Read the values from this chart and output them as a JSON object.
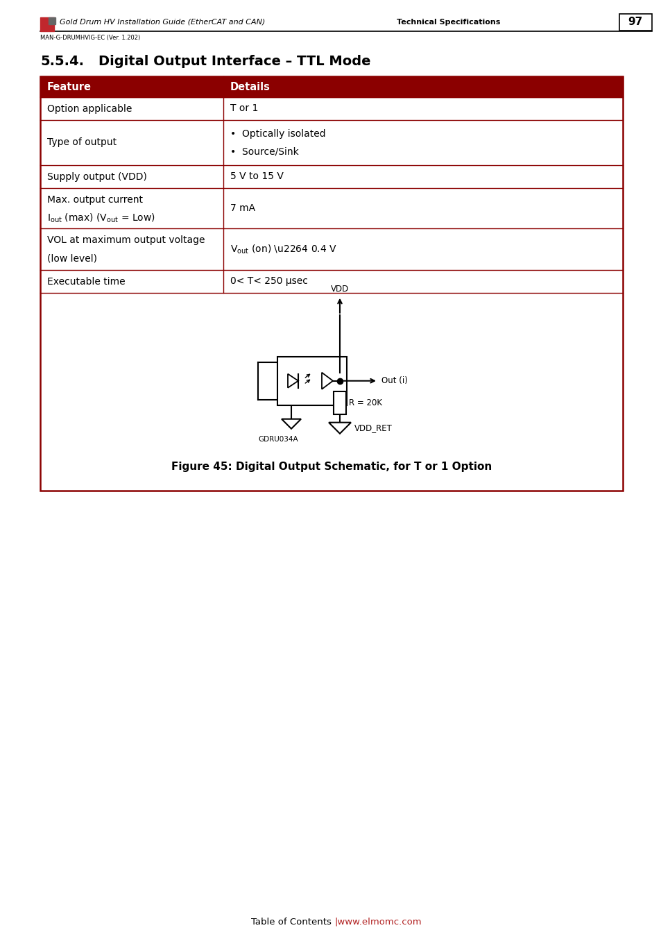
{
  "page_bg": "#ffffff",
  "header_text": "Gold Drum HV Installation Guide (EtherCAT and CAN)",
  "header_bold": "Technical Specifications",
  "header_sub": "MAN-G-DRUMHVIG-EC (Ver. 1.202)",
  "page_num": "97",
  "table_header_bg": "#8B0000",
  "table_header_text_color": "#ffffff",
  "table_border_color": "#8B0000",
  "col1_header": "Feature",
  "col2_header": "Details",
  "row_data": [
    {
      "feat": "Option applicable",
      "det": "T or 1",
      "feat2": "",
      "det2": ""
    },
    {
      "feat": "Type of output",
      "det": "•  Optically isolated",
      "feat2": "",
      "det2": "•  Source/Sink"
    },
    {
      "feat": "Supply output (VDD)",
      "det": "5 V to 15 V",
      "feat2": "",
      "det2": ""
    },
    {
      "feat": "Max. output current",
      "det": "7 mA",
      "feat2": "I_out_sub (max) (V_out_sub = Low)",
      "det2": ""
    },
    {
      "feat": "VOL at maximum output voltage",
      "det": "V_out_sub (on) ≤ 0.4 V",
      "feat2": "(low level)",
      "det2": ""
    },
    {
      "feat": "Executable time",
      "det": "0< T< 250 μsec",
      "feat2": "",
      "det2": ""
    }
  ],
  "figure_caption": "Figure 45: Digital Output Schematic, for T or 1 Option",
  "footer_text": "Table of Contents",
  "footer_link": "|www.elmomc.com",
  "logo_red": "#C0272D"
}
